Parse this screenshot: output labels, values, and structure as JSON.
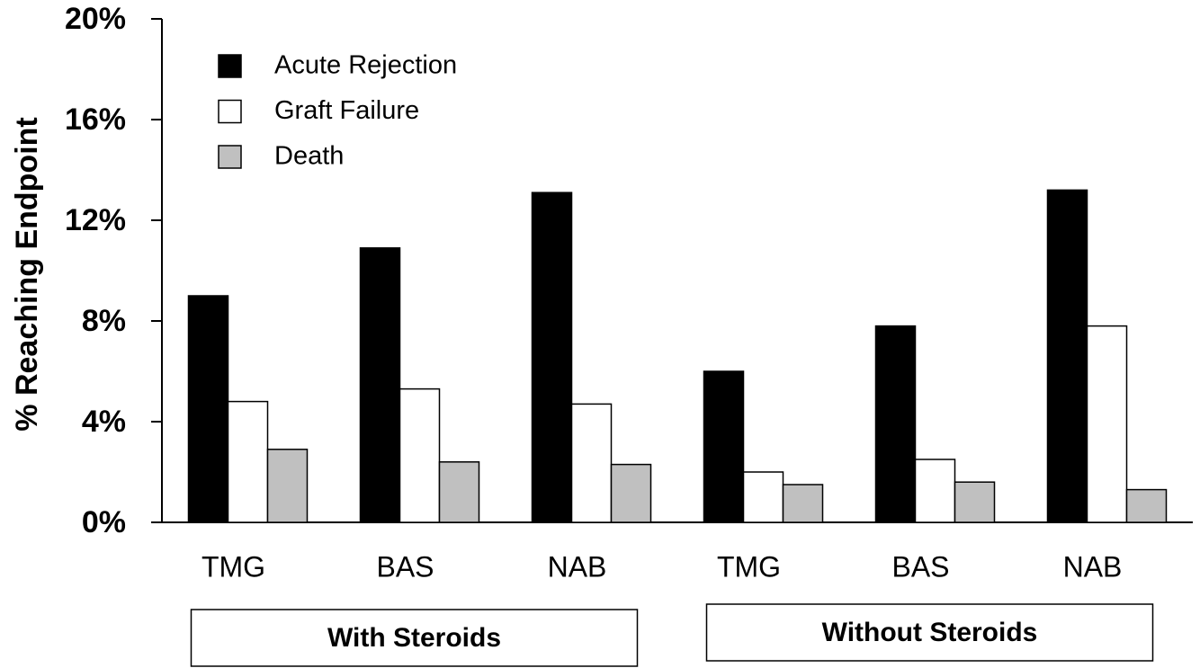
{
  "chart_data": {
    "type": "bar",
    "y_label": "% Reaching Endpoint",
    "categories": [
      "TMG",
      "BAS",
      "NAB",
      "TMG",
      "BAS",
      "NAB"
    ],
    "group_labels": [
      "With Steroids",
      "Without Steroids"
    ],
    "series": [
      {
        "name": "Acute Rejection",
        "color": "#000000",
        "values": [
          9.0,
          10.9,
          13.1,
          6.0,
          7.8,
          13.2
        ]
      },
      {
        "name": "Graft Failure",
        "color": "#ffffff",
        "values": [
          4.8,
          5.3,
          4.7,
          2.0,
          2.5,
          7.8
        ]
      },
      {
        "name": "Death",
        "color": "#c0c0c0",
        "values": [
          2.9,
          2.4,
          2.3,
          1.5,
          1.6,
          1.3
        ]
      }
    ],
    "ylim": [
      0,
      20
    ],
    "yticks": [
      {
        "value": 0,
        "label": "0%"
      },
      {
        "value": 4,
        "label": "4%"
      },
      {
        "value": 8,
        "label": "8%"
      },
      {
        "value": 12,
        "label": "12%"
      },
      {
        "value": 16,
        "label": "16%"
      },
      {
        "value": 20,
        "label": "20%"
      }
    ],
    "legend": "upper left"
  }
}
